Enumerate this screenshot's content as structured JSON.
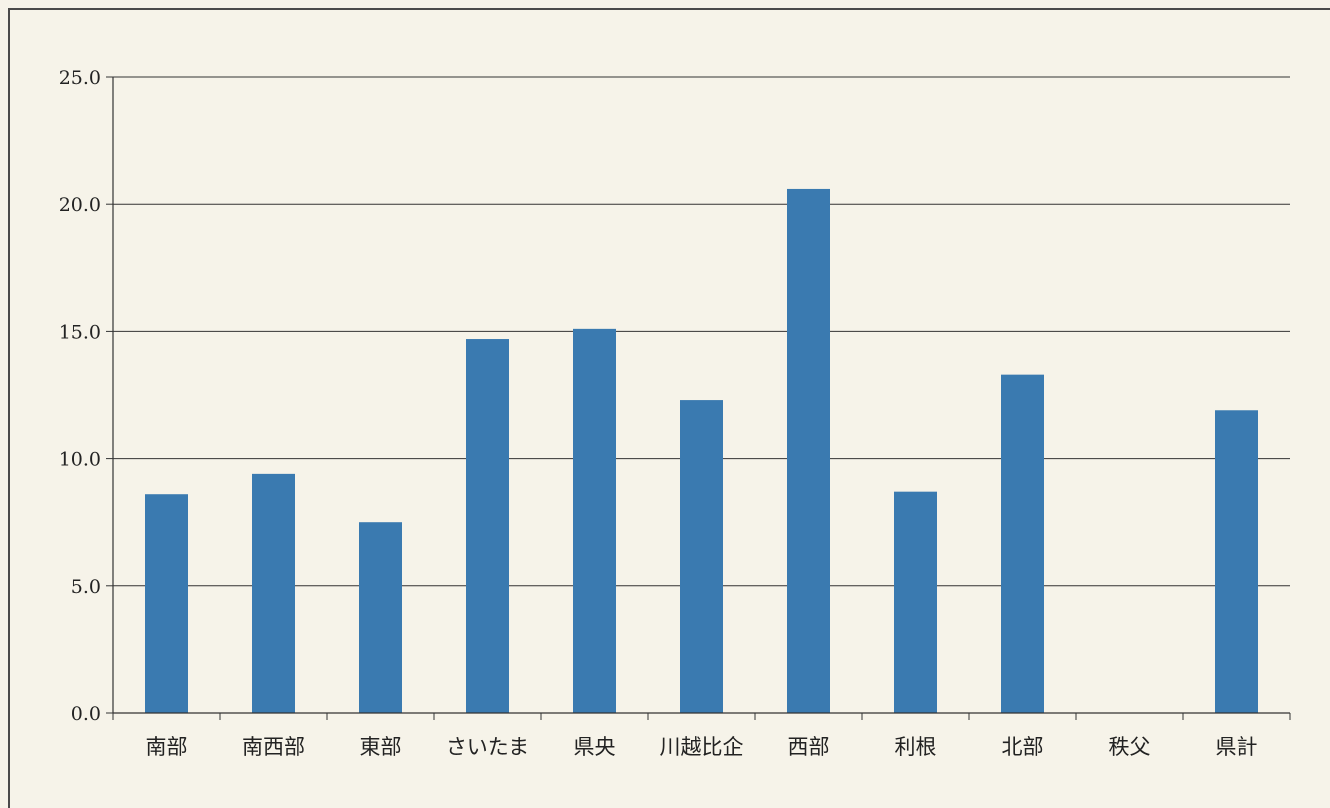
{
  "colors": {
    "bar": "#3a7ab0",
    "background": "#f6f3e9",
    "grid": "#333333"
  },
  "chart_data": {
    "type": "bar",
    "categories": [
      "南部",
      "南西部",
      "東部",
      "さいたま",
      "県央",
      "川越比企",
      "西部",
      "利根",
      "北部",
      "秩父",
      "県計"
    ],
    "values": [
      8.6,
      9.4,
      7.5,
      14.7,
      15.1,
      12.3,
      20.6,
      8.7,
      13.3,
      0,
      11.9
    ],
    "yticks": [
      "0.0",
      "5.0",
      "10.0",
      "15.0",
      "20.0",
      "25.0"
    ],
    "ylim": [
      0,
      25
    ],
    "grid": true,
    "legend": "none"
  }
}
